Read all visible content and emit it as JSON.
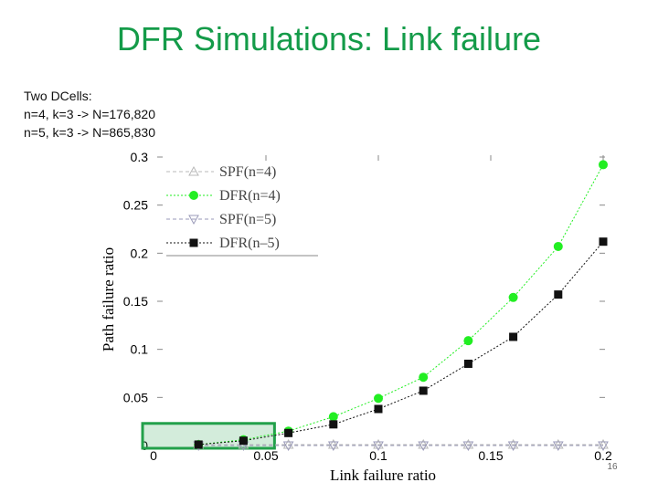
{
  "slide": {
    "title": "DFR Simulations: Link failure",
    "subtext_lines": [
      "Two DCells:",
      "n=4, k=3 -> N=176,820",
      "n=5, k=3 -> N=865,830"
    ],
    "page_number": "16"
  },
  "chart_data": {
    "type": "line",
    "title": "",
    "xlabel": "Link failure ratio",
    "ylabel": "Path failure ratio",
    "xlim": [
      0,
      0.2
    ],
    "ylim": [
      0,
      0.3
    ],
    "xticks": [
      "0",
      "0.05",
      "0.1",
      "0.15",
      "0.2"
    ],
    "yticks": [
      "0",
      "0.05",
      "0.1",
      "0.15",
      "0.2",
      "0.25",
      "0.3"
    ],
    "grid": false,
    "legend_position": "top-left",
    "series": [
      {
        "name": "SPF(n=4)",
        "marker": "triangle-up",
        "color": "#b8b8b8",
        "x": [
          0.02,
          0.04,
          0.06,
          0.08,
          0.1,
          0.12,
          0.14,
          0.16,
          0.18,
          0.2
        ],
        "y": [
          0.001,
          0.001,
          0.001,
          0.001,
          0.001,
          0.001,
          0.001,
          0.001,
          0.001,
          0.001
        ]
      },
      {
        "name": "DFR(n=4)",
        "marker": "circle",
        "color": "#22ee22",
        "x": [
          0.02,
          0.04,
          0.06,
          0.08,
          0.1,
          0.12,
          0.14,
          0.16,
          0.18,
          0.2
        ],
        "y": [
          0.001,
          0.006,
          0.015,
          0.03,
          0.049,
          0.071,
          0.109,
          0.154,
          0.207,
          0.292
        ]
      },
      {
        "name": "SPF(n=5)",
        "marker": "triangle-down",
        "color": "#9a9ab8",
        "x": [
          0.02,
          0.04,
          0.06,
          0.08,
          0.1,
          0.12,
          0.14,
          0.16,
          0.18,
          0.2
        ],
        "y": [
          0.0,
          0.0,
          0.0,
          0.0,
          0.0,
          0.0,
          0.0,
          0.0,
          0.0,
          0.0
        ]
      },
      {
        "name": "DFR(n–5)",
        "marker": "square",
        "color": "#111111",
        "x": [
          0.02,
          0.04,
          0.06,
          0.08,
          0.1,
          0.12,
          0.14,
          0.16,
          0.18,
          0.2
        ],
        "y": [
          0.001,
          0.005,
          0.013,
          0.022,
          0.038,
          0.057,
          0.085,
          0.113,
          0.157,
          0.212
        ]
      }
    ],
    "highlight_box": {
      "x": [
        0,
        0.053
      ],
      "y": [
        0,
        0.023
      ],
      "color": "#22a04a"
    }
  }
}
